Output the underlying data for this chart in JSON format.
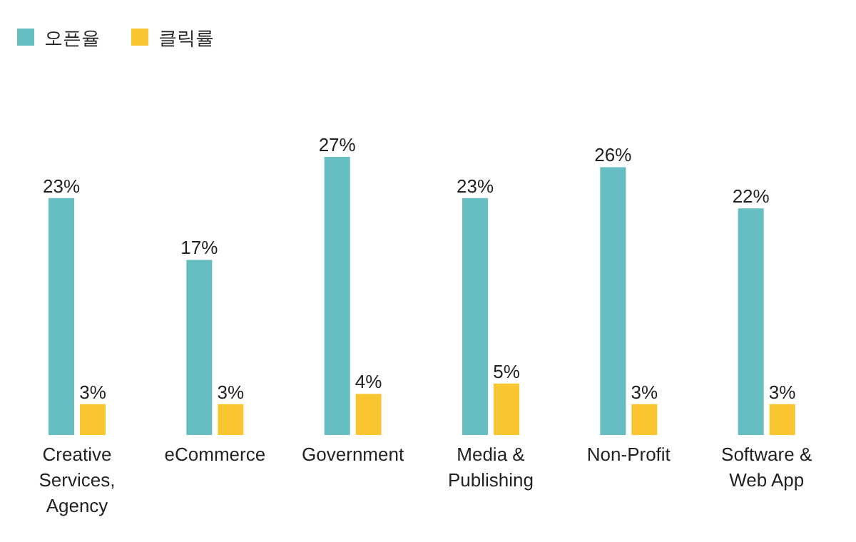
{
  "chart_data": {
    "type": "bar",
    "categories": [
      "Creative Services, Agency",
      "eCommerce",
      "Government",
      "Media & Publishing",
      "Non-Profit",
      "Software & Web App"
    ],
    "series": [
      {
        "name": "오픈율",
        "color": "#66bec3",
        "values": [
          23,
          17,
          27,
          23,
          26,
          22
        ],
        "value_labels": [
          "23%",
          "17%",
          "27%",
          "23%",
          "26%",
          "22%"
        ]
      },
      {
        "name": "클릭률",
        "color": "#f9c632",
        "values": [
          3,
          3,
          4,
          5,
          3,
          3
        ],
        "value_labels": [
          "3%",
          "3%",
          "4%",
          "5%",
          "3%",
          "3%"
        ]
      }
    ],
    "legend": "top left",
    "relative": false
  }
}
